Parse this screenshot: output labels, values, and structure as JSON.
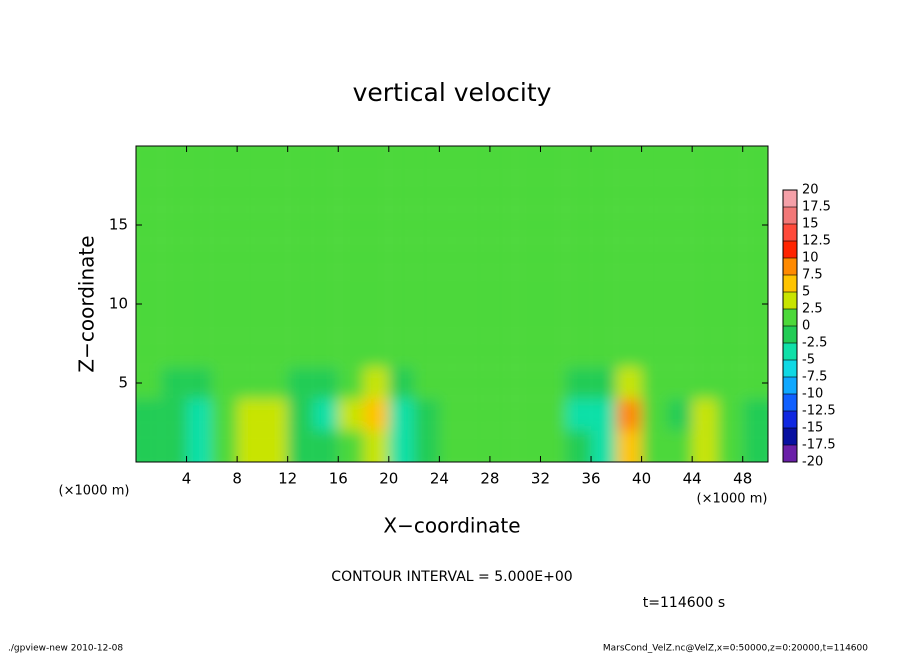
{
  "chart_data": {
    "type": "contour",
    "title": "vertical velocity",
    "x_label": "X−coordinate",
    "y_label": "Z−coordinate",
    "x_unit": "(×1000 m)",
    "y_unit": "(×1000 m)",
    "xlim": [
      0,
      50
    ],
    "ylim": [
      0,
      20
    ],
    "xticks": [
      4,
      8,
      12,
      16,
      20,
      24,
      28,
      32,
      36,
      40,
      44,
      48
    ],
    "yticks": [
      5,
      10,
      15
    ],
    "x": [
      1,
      3,
      5,
      7,
      9,
      11,
      13,
      15,
      17,
      19,
      21,
      23,
      25,
      27,
      29,
      31,
      33,
      35,
      37,
      39,
      41,
      43,
      45,
      47,
      49
    ],
    "z": [
      1,
      3,
      5,
      7,
      9,
      11,
      13,
      15,
      17,
      19
    ],
    "values": [
      [
        -1,
        -2,
        -3,
        0,
        3,
        3,
        -1,
        -2,
        2,
        4,
        -3,
        -1,
        0,
        1,
        2,
        1,
        0,
        -2,
        -3,
        6,
        1,
        2,
        4,
        0,
        -1
      ],
      [
        -1,
        -2,
        -4,
        0,
        3,
        4,
        -2,
        -3,
        3,
        6,
        -5,
        -1,
        0,
        0,
        1,
        0,
        0,
        -4,
        -5,
        9,
        2,
        -2,
        3,
        0,
        -1
      ],
      [
        0,
        -1,
        -1,
        1,
        2,
        1,
        -1,
        -1,
        2,
        3,
        -1,
        0,
        0,
        0,
        0,
        0,
        0,
        -1,
        -1,
        3,
        1,
        0,
        1,
        0,
        0
      ],
      [
        1,
        0.5,
        1,
        0.5,
        1,
        1,
        0.5,
        1,
        1,
        1,
        0.5,
        1,
        0.5,
        1,
        1,
        0.5,
        1,
        0.5,
        1,
        1,
        0.5,
        1,
        1,
        0.5,
        1
      ],
      [
        0.5,
        1,
        0.5,
        1,
        0.5,
        1,
        1,
        0.5,
        1,
        0.5,
        1,
        0.5,
        1,
        0.5,
        1,
        1,
        0.5,
        1,
        0.5,
        1,
        1,
        0.5,
        1,
        0.5,
        1
      ],
      [
        1,
        0.5,
        1,
        1,
        0.5,
        1,
        0.5,
        1,
        1,
        0.5,
        1,
        1,
        0.5,
        1,
        0.5,
        1,
        1,
        0.5,
        1,
        0.5,
        1,
        1,
        0.5,
        1,
        0.5
      ],
      [
        0.5,
        1,
        1,
        0.5,
        1,
        0.5,
        1,
        1,
        1.5,
        1,
        0.5,
        1,
        1,
        0.5,
        1,
        1,
        0.5,
        1,
        1,
        0.5,
        1,
        0.5,
        1,
        1,
        0.5
      ],
      [
        1,
        0.5,
        1,
        1,
        0.5,
        1,
        1,
        0.5,
        1,
        1,
        0.5,
        1,
        0.5,
        1,
        1,
        0.5,
        1,
        1,
        0.5,
        1,
        1,
        0.5,
        1,
        0.5,
        1
      ],
      [
        0.5,
        1,
        0.5,
        1,
        1,
        0.5,
        1,
        1,
        0.5,
        1,
        1,
        0.5,
        1,
        1,
        0.5,
        1,
        0.5,
        1,
        1,
        0.5,
        1,
        1,
        0.5,
        1,
        1
      ],
      [
        1,
        0.5,
        1,
        0.5,
        1,
        1,
        0.5,
        1,
        1,
        0.5,
        1,
        1,
        0.5,
        1,
        1,
        0.5,
        1,
        0.5,
        1,
        1,
        0.5,
        1,
        1,
        0.5,
        1
      ]
    ],
    "levels": [
      20,
      17.5,
      15,
      12.5,
      10,
      7.5,
      5,
      2.5,
      0,
      -2.5,
      -5,
      -7.5,
      -10,
      -12.5,
      -15,
      -17.5,
      -20
    ],
    "colors": [
      "#f4a0a8",
      "#f27878",
      "#ff4a3a",
      "#ff2400",
      "#ff8a00",
      "#ffc400",
      "#c8e400",
      "#4cd83a",
      "#22cc55",
      "#10e0a8",
      "#10d8e4",
      "#10a8ff",
      "#1060ff",
      "#1028e0",
      "#0810a0",
      "#6a20a8"
    ],
    "contour_interval": "CONTOUR INTERVAL = 5.000E+00",
    "time": "t=114600 s",
    "footer_left": "./gpview-new  2010-12-08",
    "footer_right": "MarsCond_VelZ.nc@VelZ,x=0:50000,z=0:20000,t=114600"
  }
}
